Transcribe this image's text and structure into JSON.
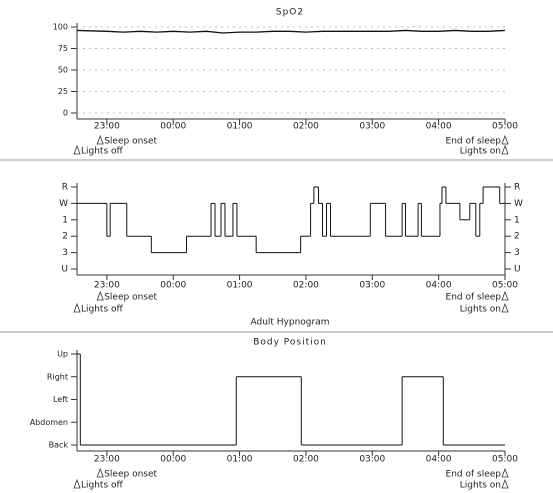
{
  "chart_data": [
    {
      "type": "line",
      "title": "SpO2",
      "x": [
        22.55,
        23,
        23.25,
        23.5,
        23.75,
        24,
        24.25,
        24.5,
        24.75,
        25,
        25.25,
        25.5,
        25.75,
        26,
        26.25,
        26.5,
        26.75,
        27,
        27.25,
        27.5,
        27.75,
        28,
        28.25,
        28.5,
        28.75,
        29
      ],
      "values": [
        96,
        95,
        94,
        95,
        94,
        95,
        94,
        95,
        93,
        94,
        94,
        95,
        95,
        94,
        95,
        95,
        95,
        95,
        95,
        96,
        95,
        95,
        96,
        95,
        95,
        96
      ],
      "color": "#111111",
      "xlim": [
        22.55,
        29
      ],
      "xticks": [
        {
          "value": 23,
          "label": "23:00"
        },
        {
          "value": 24,
          "label": "00:00"
        },
        {
          "value": 25,
          "label": "01:00"
        },
        {
          "value": 26,
          "label": "02:00"
        },
        {
          "value": 27,
          "label": "03:00"
        },
        {
          "value": 28,
          "label": "04:00"
        },
        {
          "value": 29,
          "label": "05:00"
        }
      ],
      "ylim": [
        0,
        100
      ],
      "yticks": [
        0,
        25,
        50,
        75,
        100
      ],
      "grid": true,
      "annotations": [
        {
          "text": "Sleep onset",
          "x": 22.9
        },
        {
          "text": "Lights off",
          "x": 22.55
        },
        {
          "text": "End of sleep",
          "x": 29
        },
        {
          "text": "Lights on",
          "x": 29
        }
      ]
    },
    {
      "type": "step",
      "xlabel": "Adult Hypnogram",
      "x": [
        22.55,
        23.0,
        23.05,
        23.3,
        23.67,
        24.2,
        24.57,
        24.63,
        24.72,
        24.78,
        24.9,
        24.96,
        25.25,
        25.92,
        26.07,
        26.12,
        26.19,
        26.25,
        26.31,
        26.37,
        26.97,
        27.2,
        27.45,
        27.5,
        27.69,
        27.74,
        28.02,
        28.05,
        28.11,
        28.32,
        28.47,
        28.56,
        28.62,
        28.67,
        28.92
      ],
      "values": [
        4,
        2,
        4,
        2,
        1,
        2,
        4,
        2,
        4,
        2,
        4,
        2,
        1,
        2,
        4,
        5,
        4,
        2,
        4,
        2,
        4,
        2,
        4,
        2,
        4,
        2,
        4,
        5,
        4,
        3,
        4,
        2,
        4,
        5,
        4
      ],
      "color": "#111111",
      "xlim": [
        22.55,
        29
      ],
      "xticks": [
        {
          "value": 23,
          "label": "23:00"
        },
        {
          "value": 24,
          "label": "00:00"
        },
        {
          "value": 25,
          "label": "01:00"
        },
        {
          "value": 26,
          "label": "02:00"
        },
        {
          "value": 27,
          "label": "03:00"
        },
        {
          "value": 28,
          "label": "04:00"
        },
        {
          "value": 29,
          "label": "05:00"
        }
      ],
      "ylim": [
        0,
        5
      ],
      "yticks": [
        {
          "value": 0,
          "label": "U"
        },
        {
          "value": 1,
          "label": "3"
        },
        {
          "value": 2,
          "label": "2"
        },
        {
          "value": 3,
          "label": "1"
        },
        {
          "value": 4,
          "label": "W"
        },
        {
          "value": 5,
          "label": "R"
        }
      ],
      "mirror_yticks": true,
      "annotations": [
        {
          "text": "Sleep onset",
          "x": 22.9
        },
        {
          "text": "Lights off",
          "x": 22.55
        },
        {
          "text": "End of sleep",
          "x": 29
        },
        {
          "text": "Lights on",
          "x": 29
        }
      ]
    },
    {
      "type": "step",
      "title": "Body Position",
      "x": [
        22.55,
        22.6,
        24.95,
        25.93,
        27.45,
        28.07
      ],
      "values": [
        4,
        0,
        3,
        0,
        3,
        0
      ],
      "color": "#111111",
      "xlim": [
        22.55,
        29
      ],
      "xticks": [
        {
          "value": 23,
          "label": "23:00"
        },
        {
          "value": 24,
          "label": "00:00"
        },
        {
          "value": 25,
          "label": "01:00"
        },
        {
          "value": 26,
          "label": "02:00"
        },
        {
          "value": 27,
          "label": "03:00"
        },
        {
          "value": 28,
          "label": "04:00"
        },
        {
          "value": 29,
          "label": "05:00"
        }
      ],
      "ylim": [
        0,
        4
      ],
      "yticks": [
        {
          "value": 0,
          "label": "Back"
        },
        {
          "value": 1,
          "label": "Abdomen"
        },
        {
          "value": 2,
          "label": "Left"
        },
        {
          "value": 3,
          "label": "Right"
        },
        {
          "value": 4,
          "label": "Up"
        }
      ],
      "annotations": [
        {
          "text": "Sleep onset",
          "x": 22.9
        },
        {
          "text": "Lights off",
          "x": 22.55
        },
        {
          "text": "End of sleep",
          "x": 29
        },
        {
          "text": "Lights on",
          "x": 29
        }
      ]
    }
  ]
}
